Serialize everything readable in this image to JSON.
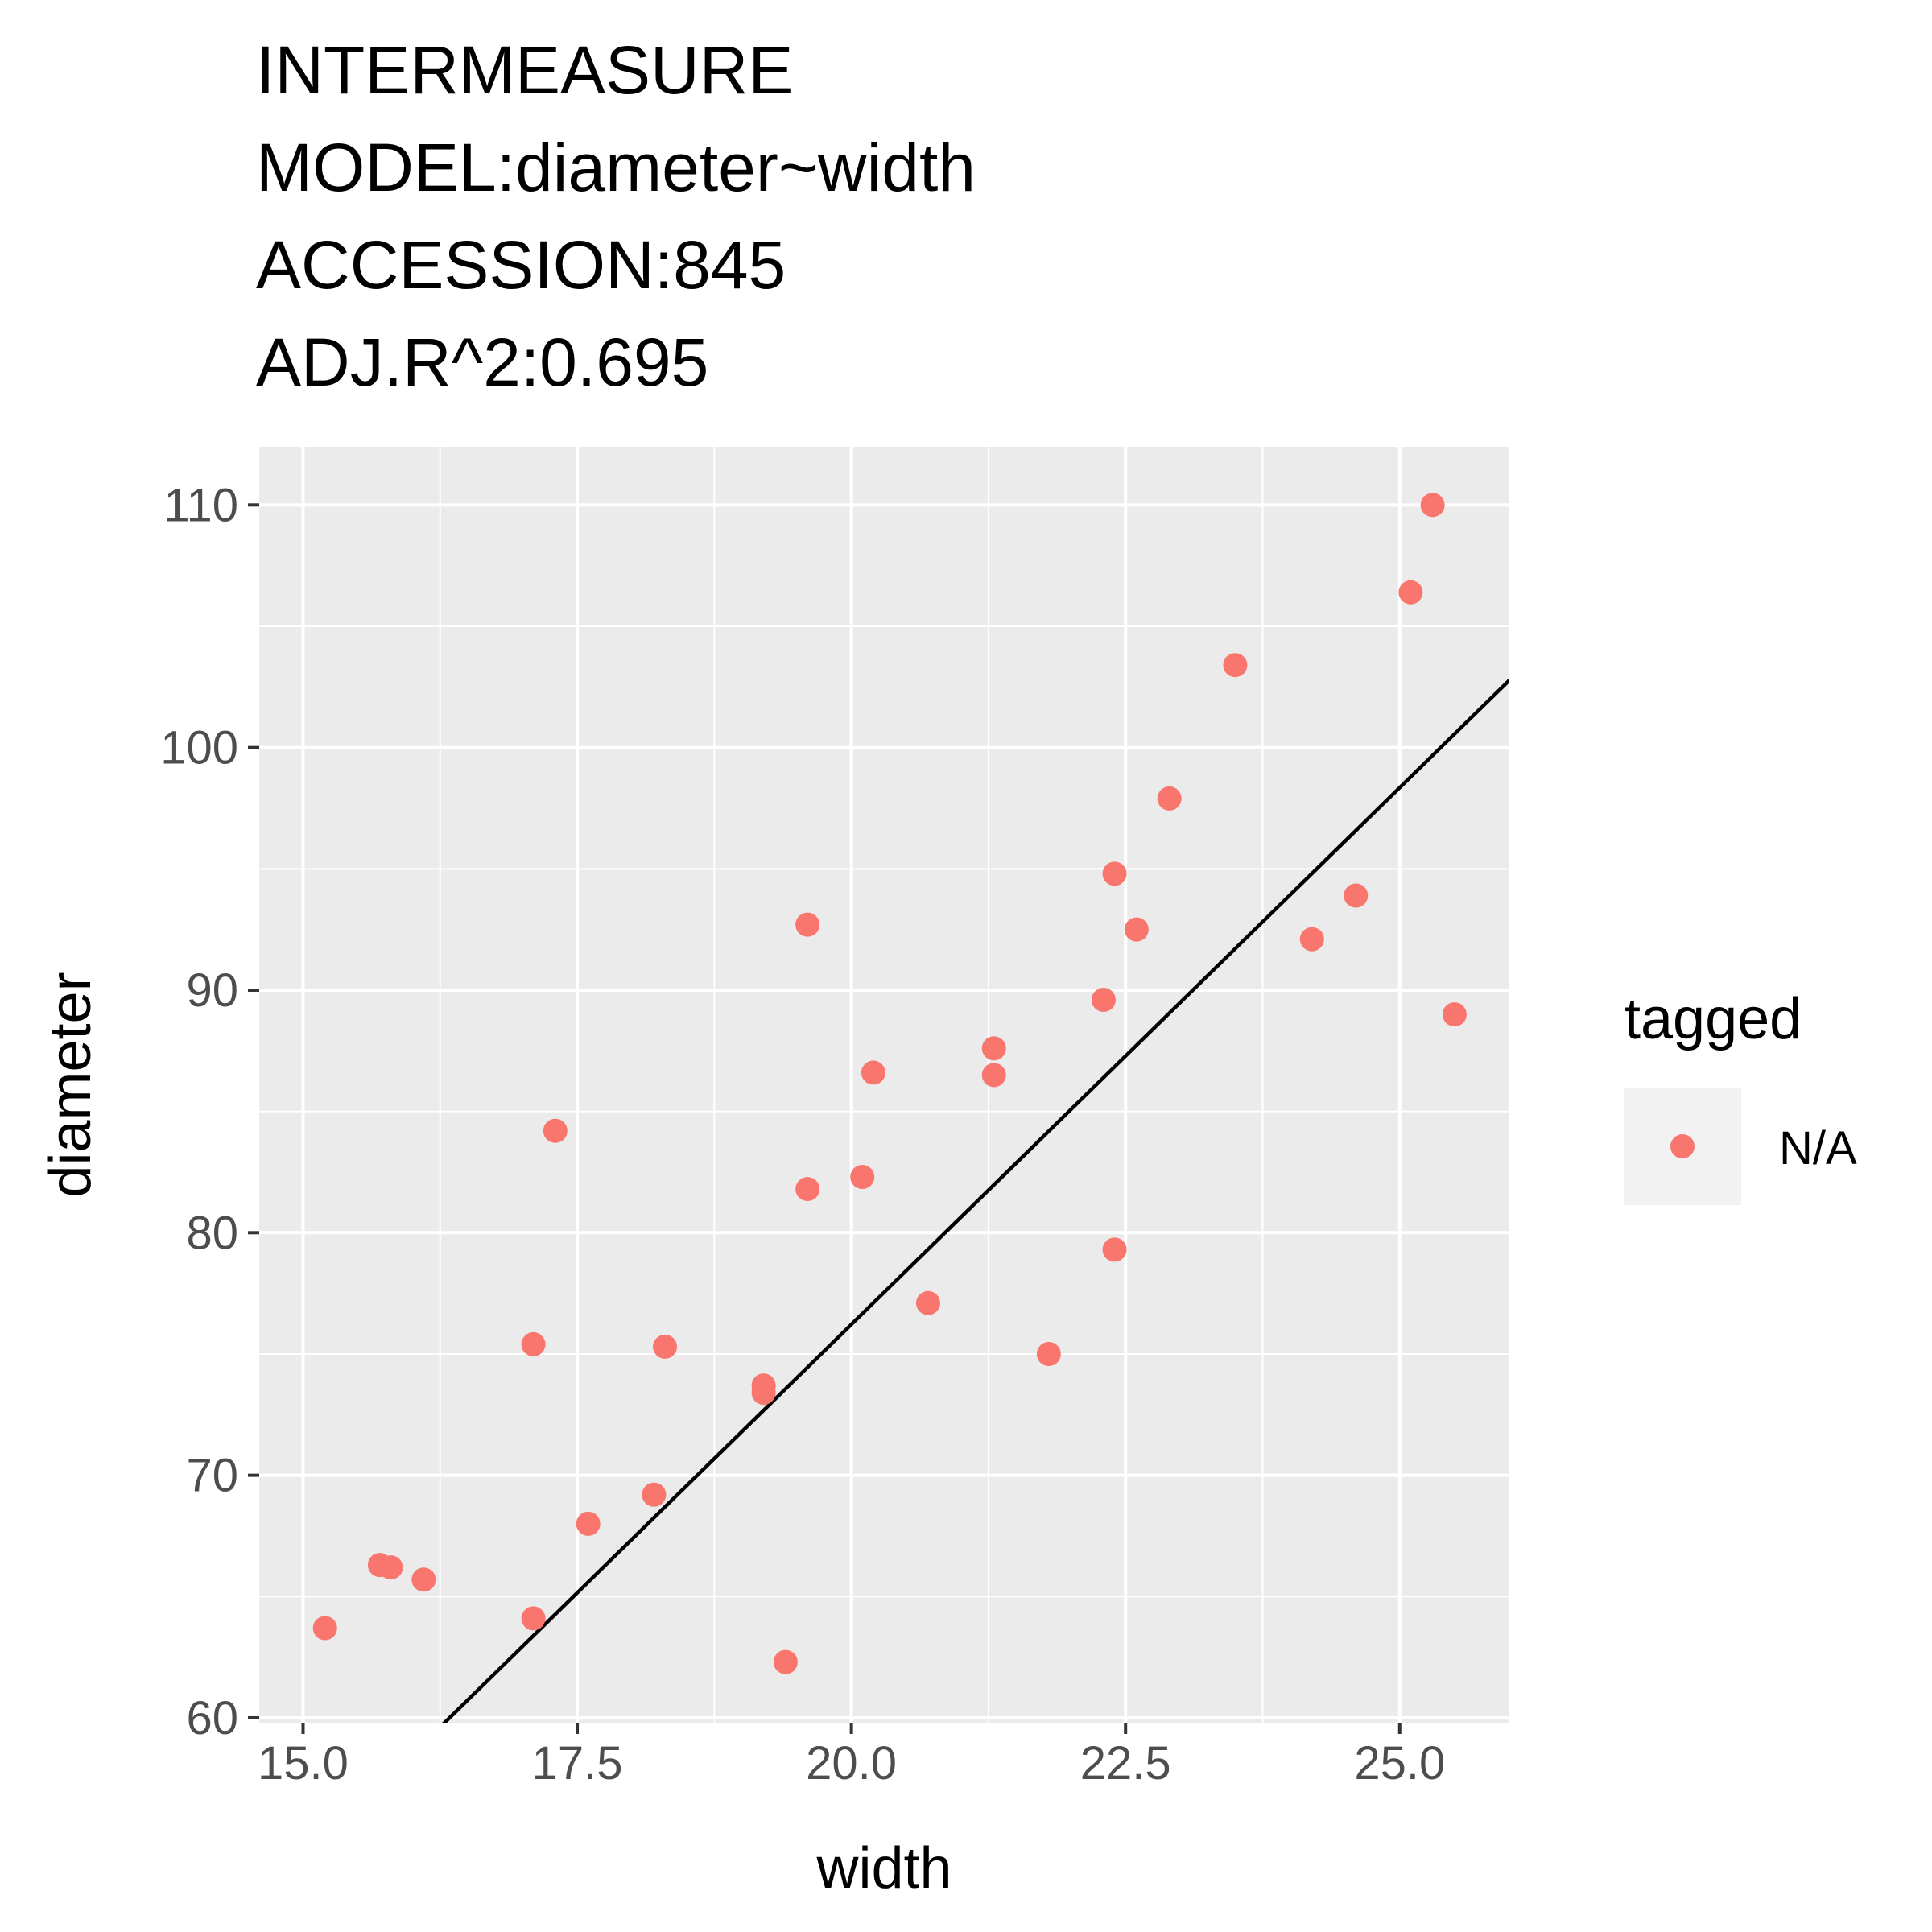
{
  "chart_data": {
    "type": "scatter",
    "title_lines": [
      "INTERMEASURE",
      "MODEL:diameter~width",
      "ACCESSION:845",
      "ADJ.R^2:0.695"
    ],
    "xlabel": "width",
    "ylabel": "diameter",
    "xlim": [
      14.6,
      26.0
    ],
    "ylim": [
      59.8,
      112.4
    ],
    "x_ticks": [
      15.0,
      17.5,
      20.0,
      22.5,
      25.0
    ],
    "x_tick_labels": [
      "15.0",
      "17.5",
      "20.0",
      "22.5",
      "25.0"
    ],
    "y_ticks": [
      60,
      70,
      80,
      90,
      100,
      110
    ],
    "y_tick_labels": [
      "60",
      "70",
      "80",
      "90",
      "100",
      "110"
    ],
    "grid": true,
    "legend": {
      "title": "tagged",
      "placement": "right",
      "entries": [
        {
          "label": "N/A",
          "color": "#F8766D"
        }
      ]
    },
    "series": [
      {
        "name": "N/A",
        "color": "#F8766D",
        "points": [
          [
            15.2,
            63.7
          ],
          [
            15.7,
            66.3
          ],
          [
            15.8,
            66.2
          ],
          [
            16.1,
            65.7
          ],
          [
            17.1,
            64.1
          ],
          [
            17.1,
            75.4
          ],
          [
            17.3,
            84.2
          ],
          [
            17.6,
            68.0
          ],
          [
            18.2,
            69.2
          ],
          [
            18.3,
            75.3
          ],
          [
            19.2,
            73.7
          ],
          [
            19.2,
            73.4
          ],
          [
            19.4,
            62.3
          ],
          [
            19.6,
            92.7
          ],
          [
            19.6,
            81.8
          ],
          [
            20.1,
            82.3
          ],
          [
            20.2,
            86.6
          ],
          [
            20.7,
            77.1
          ],
          [
            21.3,
            87.6
          ],
          [
            21.3,
            86.5
          ],
          [
            21.8,
            75.0
          ],
          [
            22.3,
            89.6
          ],
          [
            22.4,
            94.8
          ],
          [
            22.4,
            79.3
          ],
          [
            22.6,
            92.5
          ],
          [
            22.9,
            97.9
          ],
          [
            23.5,
            103.4
          ],
          [
            24.2,
            92.1
          ],
          [
            24.6,
            93.9
          ],
          [
            25.1,
            106.4
          ],
          [
            25.3,
            110.0
          ],
          [
            25.5,
            89.0
          ]
        ]
      }
    ],
    "fit_line": {
      "intercept": -12.3,
      "slope": 4.426,
      "color": "#000000"
    },
    "colors": {
      "panel": "#EBEBEB",
      "grid": "#FFFFFF",
      "point": "#F8766D",
      "axis_text": "#4D4D4D"
    }
  }
}
